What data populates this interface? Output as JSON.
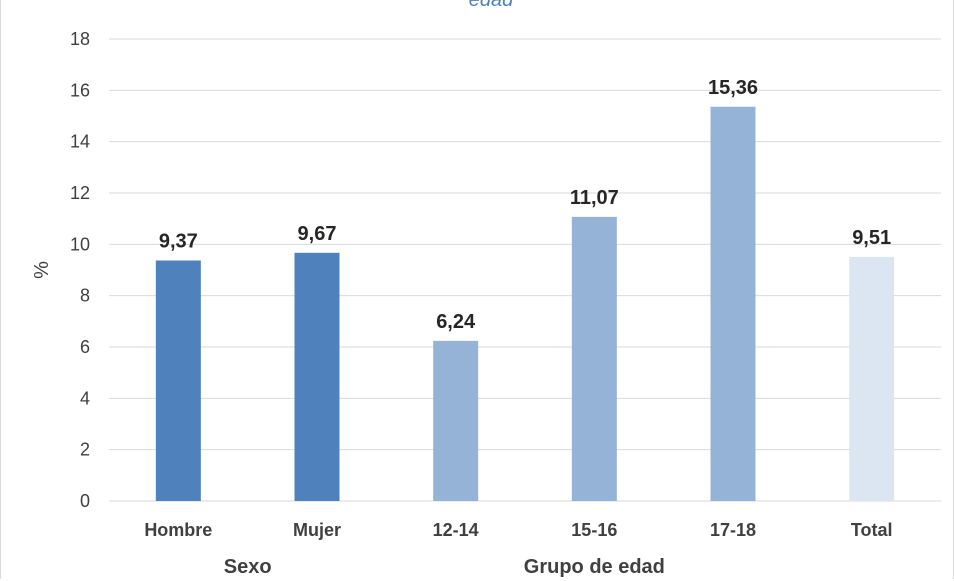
{
  "chart_data": {
    "type": "bar",
    "title_fragment": "edad",
    "ylabel": "%",
    "ylim": [
      0,
      18
    ],
    "ytick_step": 2,
    "grid": true,
    "categories": [
      "Hombre",
      "Mujer",
      "12-14",
      "15-16",
      "17-18",
      "Total"
    ],
    "values": [
      9.37,
      9.67,
      6.24,
      11.07,
      15.36,
      9.51
    ],
    "data_labels": [
      "9,37",
      "9,67",
      "6,24",
      "11,07",
      "15,36",
      "9,51"
    ],
    "groups": [
      {
        "label": "Sexo",
        "span": [
          0,
          1
        ]
      },
      {
        "label": "Grupo de edad",
        "span": [
          2,
          4
        ]
      }
    ],
    "colors": [
      "#4f81bd",
      "#4f81bd",
      "#95b3d7",
      "#95b3d7",
      "#95b3d7",
      "#dce6f2"
    ],
    "gridline_color": "#d9d9d9"
  }
}
